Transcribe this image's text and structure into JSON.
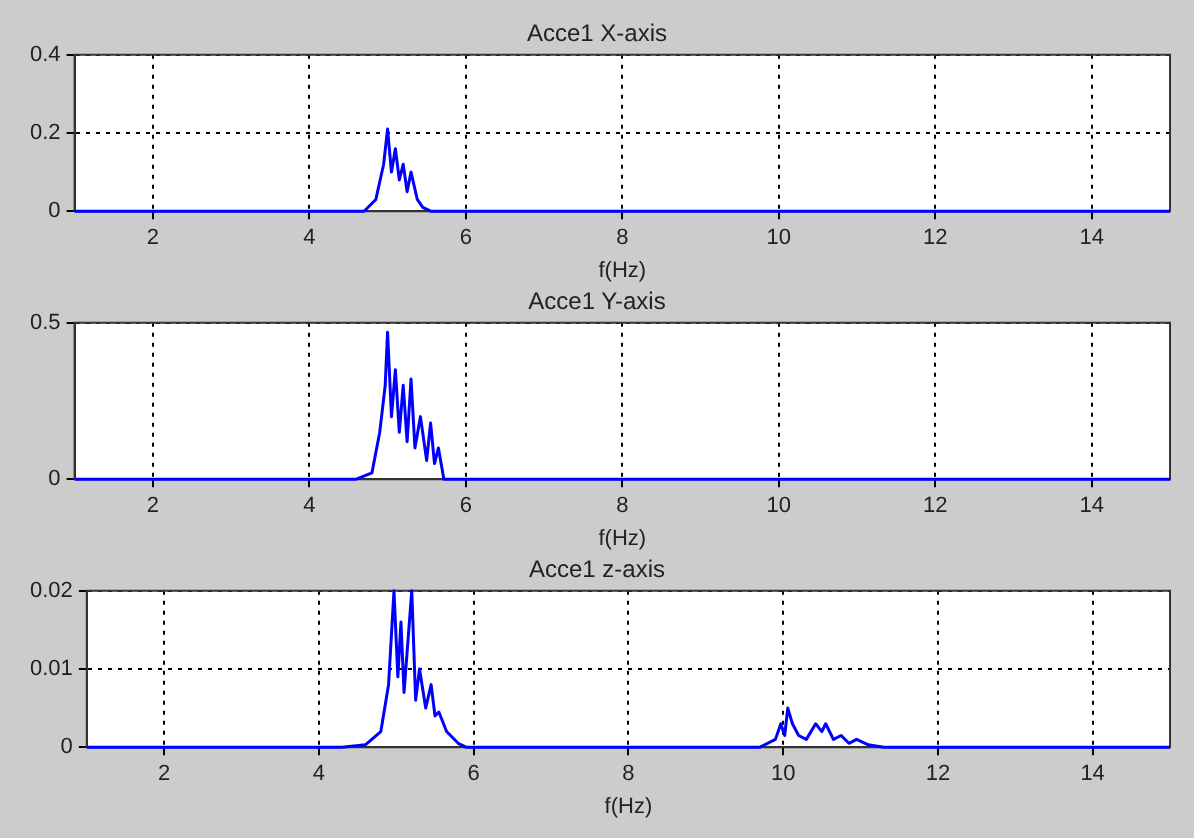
{
  "chart_data": [
    {
      "type": "line",
      "title": "Acce1 X-axis",
      "xlabel": "f(Hz)",
      "xlim": [
        1,
        15
      ],
      "xticks": [
        2,
        4,
        6,
        8,
        10,
        12,
        14
      ],
      "ylim": [
        0,
        0.4
      ],
      "yticks": [
        0,
        0.2,
        0.4
      ],
      "grid": true,
      "marker": "none",
      "line_style": "solid",
      "series": [
        {
          "color": "#0000ff",
          "x": [
            1,
            4.7,
            4.85,
            4.95,
            5.0,
            5.05,
            5.1,
            5.15,
            5.2,
            5.25,
            5.3,
            5.38,
            5.45,
            5.55,
            15
          ],
          "values": [
            0,
            0,
            0.03,
            0.12,
            0.21,
            0.1,
            0.16,
            0.08,
            0.12,
            0.05,
            0.1,
            0.03,
            0.01,
            0,
            0
          ]
        }
      ]
    },
    {
      "type": "line",
      "title": "Acce1 Y-axis",
      "xlabel": "f(Hz)",
      "xlim": [
        1,
        15
      ],
      "xticks": [
        2,
        4,
        6,
        8,
        10,
        12,
        14
      ],
      "ylim": [
        0,
        0.5
      ],
      "yticks": [
        0,
        0.5
      ],
      "grid": true,
      "marker": "none",
      "line_style": "solid",
      "series": [
        {
          "color": "#0000ff",
          "x": [
            1,
            4.6,
            4.8,
            4.9,
            4.97,
            5.0,
            5.05,
            5.1,
            5.15,
            5.2,
            5.25,
            5.3,
            5.35,
            5.42,
            5.5,
            5.55,
            5.6,
            5.65,
            5.72,
            15
          ],
          "values": [
            0,
            0,
            0.02,
            0.15,
            0.3,
            0.47,
            0.2,
            0.35,
            0.15,
            0.3,
            0.12,
            0.32,
            0.1,
            0.2,
            0.06,
            0.18,
            0.05,
            0.1,
            0,
            0
          ]
        }
      ]
    },
    {
      "type": "line",
      "title": "Acce1 z-axis",
      "xlabel": "f(Hz)",
      "xlim": [
        1,
        15
      ],
      "xticks": [
        2,
        4,
        6,
        8,
        10,
        12,
        14
      ],
      "ylim": [
        0,
        0.02
      ],
      "yticks": [
        0,
        0.01,
        0.02
      ],
      "grid": true,
      "marker": "none",
      "line_style": "solid",
      "series": [
        {
          "color": "#0000ff",
          "x": [
            1,
            4.3,
            4.6,
            4.8,
            4.9,
            4.97,
            5.02,
            5.06,
            5.1,
            5.2,
            5.25,
            5.3,
            5.38,
            5.45,
            5.5,
            5.55,
            5.65,
            5.8,
            5.9,
            9.7,
            9.9,
            9.97,
            10.02,
            10.06,
            10.12,
            10.2,
            10.3,
            10.42,
            10.5,
            10.55,
            10.65,
            10.75,
            10.85,
            10.95,
            11.1,
            11.3,
            15
          ],
          "values": [
            0,
            0,
            0.0003,
            0.002,
            0.008,
            0.02,
            0.009,
            0.016,
            0.007,
            0.02,
            0.006,
            0.01,
            0.005,
            0.008,
            0.004,
            0.0045,
            0.002,
            0.0005,
            0,
            0,
            0.001,
            0.003,
            0.0015,
            0.005,
            0.003,
            0.0015,
            0.001,
            0.003,
            0.002,
            0.003,
            0.001,
            0.0015,
            0.0005,
            0.001,
            0.0003,
            0,
            0
          ]
        }
      ]
    }
  ]
}
